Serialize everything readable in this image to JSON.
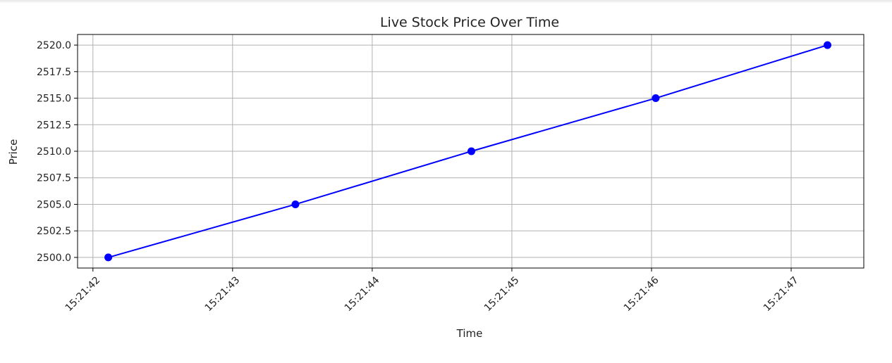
{
  "chart_data": {
    "type": "line",
    "title": "Live Stock Price Over Time",
    "xlabel": "Time",
    "ylabel": "Price",
    "x_ticks": [
      "15:21:42",
      "15:21:43",
      "15:21:44",
      "15:21:45",
      "15:21:46",
      "15:21:47"
    ],
    "y_ticks": [
      "2500.0",
      "2502.5",
      "2505.0",
      "2507.5",
      "2510.0",
      "2512.5",
      "2515.0",
      "2517.5",
      "2520.0"
    ],
    "xlim": [
      "15:21:41.89",
      "15:21:47.52"
    ],
    "ylim": [
      2499.0,
      2521.0
    ],
    "grid": true,
    "series": [
      {
        "color": "#0000ff",
        "marker": "circle",
        "x": [
          "15:21:42.11",
          "15:21:43.45",
          "15:21:44.71",
          "15:21:46.03",
          "15:21:47.26"
        ],
        "y": [
          2500.0,
          2505.0,
          2510.0,
          2515.0,
          2520.0
        ]
      }
    ]
  }
}
